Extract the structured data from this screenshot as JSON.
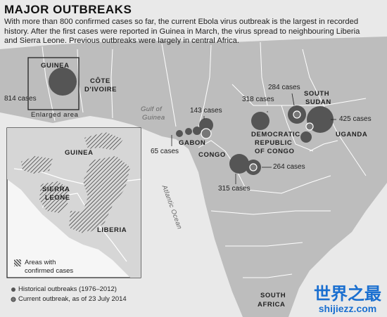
{
  "header": {
    "title": "MAJOR OUTBREAKS",
    "description": "With more than 800 confirmed cases so far, the current Ebola virus outbreak is the largest in recorded history. After the first cases were reported in Guinea in March, the virus spread to neighbouring Liberia and Sierra Leone. Previous outbreaks were largely in central Africa."
  },
  "map_labels": {
    "guinea": "GUINEA",
    "cote_divoire_1": "CÔTE",
    "cote_divoire_2": "D'IVOIRE",
    "gulf_1": "Gulf of",
    "gulf_2": "Guinea",
    "gabon": "GABON",
    "congo": "CONGO",
    "drc_1": "DEMOCRATIC",
    "drc_2": "REPUBLIC",
    "drc_3": "OF CONGO",
    "south_sudan_1": "SOUTH",
    "south_sudan_2": "SUDAN",
    "uganda": "UGANDA",
    "atlantic": "Atlantic Ocean",
    "south_africa_1": "SOUTH",
    "south_africa_2": "AFRICA"
  },
  "case_labels": {
    "guinea": "814 cases",
    "gabon_small": "65 cases",
    "gabon_top": "143 cases",
    "drc_north": "318 cases",
    "sudan_top": "284 cases",
    "uganda": "425 cases",
    "drc_south_right": "264 cases",
    "drc_south_left": "315 cases"
  },
  "enlarged_area_label": "Enlarged area",
  "inset": {
    "guinea": "GUINEA",
    "sierra_leone_1": "SIERRA",
    "sierra_leone_2": "LEONE",
    "liberia": "LIBERIA",
    "legend_1": "Areas with",
    "legend_2": "confirmed cases"
  },
  "legend": {
    "historical": "Historical outbreaks (1976–2012)",
    "current": "Current outbreak, as of 23 July 2014"
  },
  "watermark": {
    "chinese": "世界之最",
    "url": "shijiezz.com"
  },
  "colors": {
    "ocean": "#e9e9e9",
    "land": "#bdbdbd",
    "border": "#ffffff",
    "circle": "#555555",
    "watermark": "#1a6fd0"
  }
}
